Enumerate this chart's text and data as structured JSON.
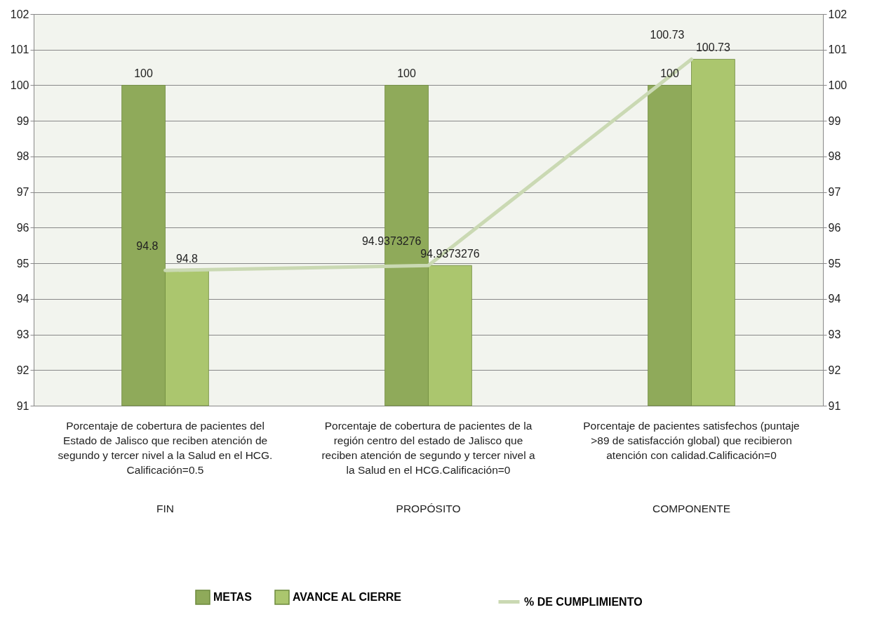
{
  "chart_data": {
    "type": "bar",
    "categories": [
      "Porcentaje de cobertura de pacientes  del Estado de Jalisco que reciben atención de segundo y tercer nivel a la Salud en el HCG. Calificación=0.5",
      "Porcentaje de cobertura de pacientes de la región centro del estado de Jalisco que reciben atención de segundo y tercer nivel a la Salud en el HCG.Calificación=0",
      "Porcentaje de pacientes satisfechos (puntaje >89 de satisfacción global) que recibieron atención con calidad.Calificación=0"
    ],
    "annotations": [
      "FIN",
      "PROPÓSITO",
      "COMPONENTE"
    ],
    "series": [
      {
        "name": "METAS",
        "color": "#8faa5a",
        "values": [
          100,
          100,
          100
        ]
      },
      {
        "name": "AVANCE AL CIERRE",
        "color": "#abc66e",
        "values": [
          94.8,
          94.9373276,
          100.73
        ]
      },
      {
        "name": "% DE CUMPLIMIENTO",
        "type": "line",
        "axis": "y2",
        "color": "#cad9b3",
        "values": [
          94.8,
          94.9373276,
          100.73
        ]
      }
    ],
    "ylim": [
      91,
      102
    ],
    "yticks": [
      91,
      92,
      93,
      94,
      95,
      96,
      97,
      98,
      99,
      100,
      101,
      102
    ],
    "y2lim": [
      91,
      102
    ],
    "y2ticks": [
      91,
      92,
      93,
      94,
      95,
      96,
      97,
      98,
      99,
      100,
      101,
      102
    ],
    "grid": "y",
    "legend": "bottom",
    "data_labels": true,
    "marker": "none",
    "line_style": "solid"
  }
}
